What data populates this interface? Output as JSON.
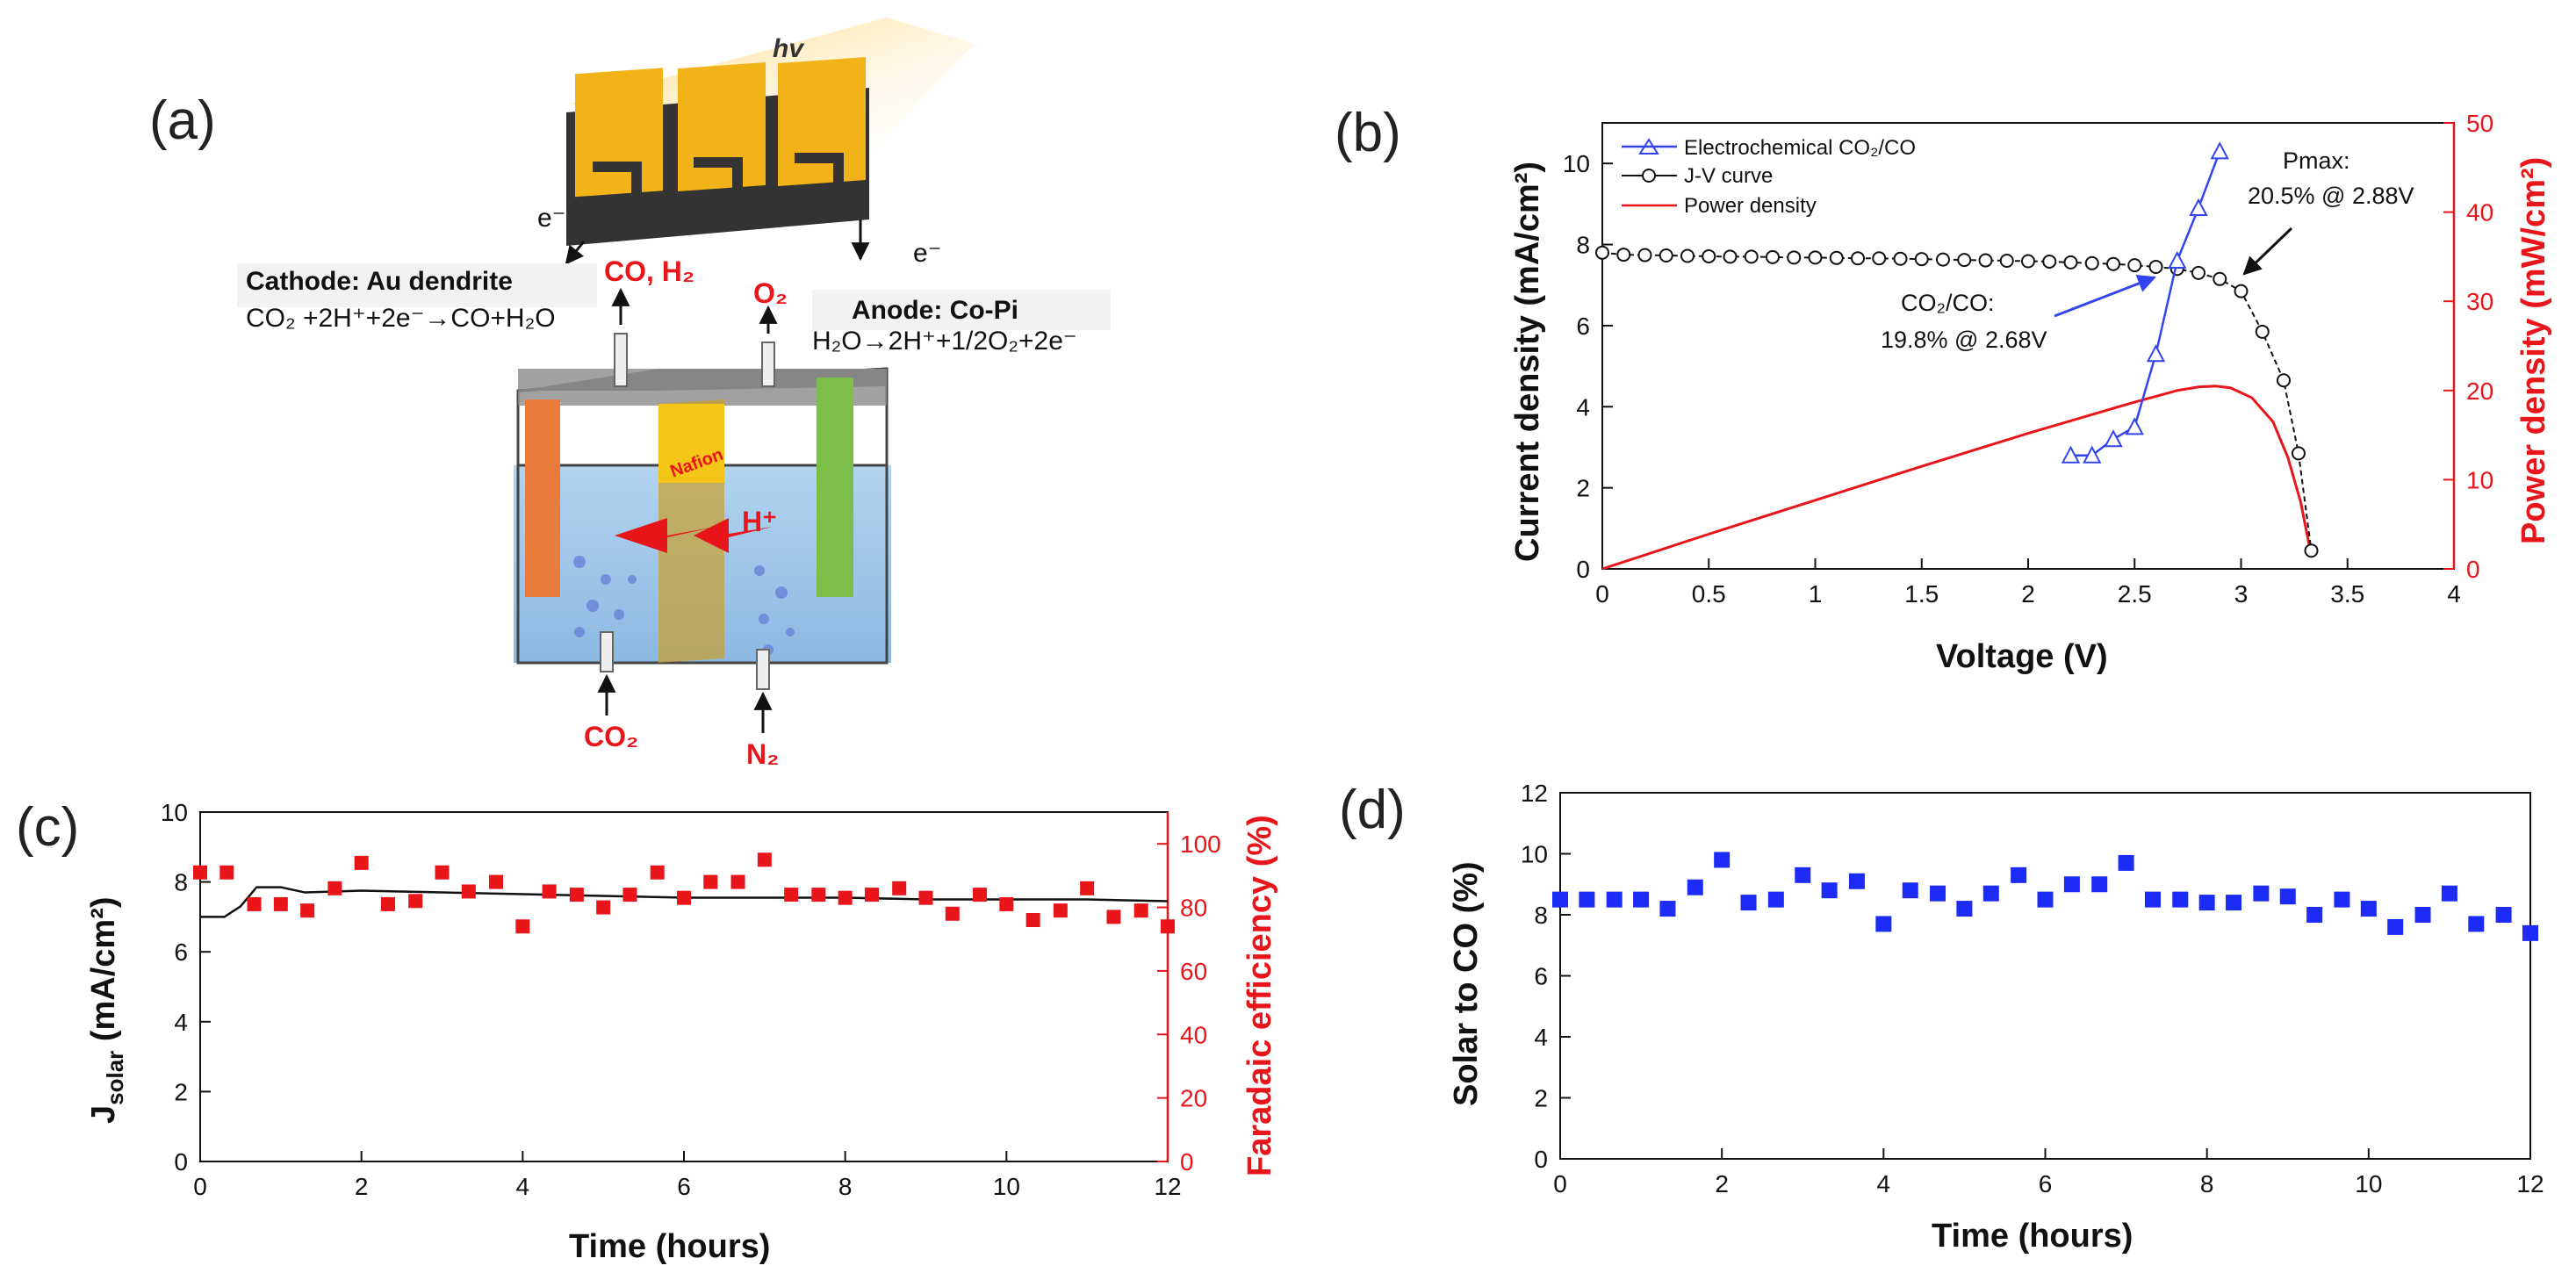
{
  "panels": {
    "a": "(a)",
    "b": "(b)",
    "c": "(c)",
    "d": "(d)"
  },
  "diagram": {
    "hv": "hv",
    "electron_left": "e⁻",
    "electron_right": "e⁻",
    "cathode_title": "Cathode: Au dendrite",
    "cathode_reaction": "CO₂ +2H⁺+2e⁻→CO+H₂O",
    "anode_title": "Anode: Co-Pi",
    "anode_reaction": "H₂O→2H⁺+1/2O₂+2e⁻",
    "gas_out_cathode": "CO, H₂",
    "gas_out_anode": "O₂",
    "membrane": "Nafion",
    "proton": "H⁺",
    "gas_in_cathode": "CO₂",
    "gas_in_anode": "N₂"
  },
  "chart_data": [
    {
      "id": "b",
      "type": "line",
      "xlabel": "Voltage (V)",
      "ylabel": "Current density (mA/cm²)",
      "y2label": "Power density (mW/cm²)",
      "xlim": [
        0,
        4
      ],
      "ylim": [
        0,
        11
      ],
      "y2lim": [
        0,
        50
      ],
      "xticks": [
        "0",
        "0.5",
        "1",
        "1.5",
        "2",
        "2.5",
        "3",
        "3.5",
        "4"
      ],
      "yticks": [
        "0",
        "2",
        "4",
        "6",
        "8",
        "10"
      ],
      "y2ticks": [
        "0",
        "10",
        "20",
        "30",
        "40",
        "50"
      ],
      "legend": [
        "Electrochemical CO₂/CO",
        "J-V curve",
        "Power density"
      ],
      "annotations": {
        "pmax_1": "Pmax:",
        "pmax_2": "20.5% @ 2.88V",
        "co_1": "CO₂/CO:",
        "co_2": "19.8% @ 2.68V"
      },
      "colors": {
        "electrochem": "#3344ee",
        "jv": "#111111",
        "power": "#e8151b"
      },
      "series": [
        {
          "name": "Electrochemical CO₂/CO",
          "x": [
            2.2,
            2.3,
            2.4,
            2.5,
            2.6,
            2.7,
            2.8,
            2.9
          ],
          "y": [
            2.8,
            2.8,
            3.2,
            3.5,
            5.3,
            7.6,
            8.9,
            10.3
          ]
        },
        {
          "name": "J-V curve",
          "x": [
            0,
            0.1,
            0.2,
            0.3,
            0.4,
            0.5,
            0.6,
            0.7,
            0.8,
            0.9,
            1.0,
            1.1,
            1.2,
            1.3,
            1.4,
            1.5,
            1.6,
            1.7,
            1.8,
            1.9,
            2.0,
            2.1,
            2.2,
            2.3,
            2.4,
            2.5,
            2.6,
            2.7,
            2.8,
            2.9,
            3.0,
            3.1,
            3.2,
            3.27,
            3.33
          ],
          "y": [
            7.8,
            7.75,
            7.74,
            7.73,
            7.72,
            7.71,
            7.7,
            7.7,
            7.69,
            7.68,
            7.68,
            7.67,
            7.66,
            7.66,
            7.65,
            7.64,
            7.63,
            7.62,
            7.61,
            7.6,
            7.59,
            7.58,
            7.56,
            7.54,
            7.52,
            7.49,
            7.45,
            7.4,
            7.3,
            7.15,
            6.85,
            5.85,
            4.65,
            2.85,
            0.45
          ]
        },
        {
          "name": "Power density",
          "axis": "y2",
          "x": [
            0,
            0.5,
            1.0,
            1.5,
            2.0,
            2.5,
            2.7,
            2.8,
            2.88,
            2.95,
            3.05,
            3.15,
            3.22,
            3.28,
            3.33
          ],
          "y": [
            0,
            3.9,
            7.7,
            11.5,
            15.2,
            18.7,
            20.0,
            20.4,
            20.5,
            20.3,
            19.2,
            16.5,
            12.5,
            7.5,
            1.5
          ]
        }
      ]
    },
    {
      "id": "c",
      "type": "scatter",
      "xlabel": "Time (hours)",
      "ylabel": "J_solar (mA/cm²)",
      "ylabel_main": "J",
      "ylabel_sub": "solar",
      "ylabel_rest": " (mA/cm²)",
      "y2label": "Faradaic efficiency (%)",
      "xlim": [
        0,
        12
      ],
      "ylim": [
        0,
        10
      ],
      "y2lim": [
        0,
        110
      ],
      "xticks": [
        "0",
        "2",
        "4",
        "6",
        "8",
        "10",
        "12"
      ],
      "yticks": [
        "0",
        "2",
        "4",
        "6",
        "8",
        "10"
      ],
      "y2ticks": [
        "0",
        "20",
        "40",
        "60",
        "80",
        "100"
      ],
      "series": [
        {
          "name": "J_solar",
          "type": "line",
          "x": [
            0,
            0.3,
            0.5,
            0.7,
            1.0,
            1.3,
            2.0,
            3.0,
            4.0,
            5.0,
            6.0,
            7.0,
            8.0,
            9.0,
            10.0,
            11.0,
            12.0
          ],
          "y": [
            7.0,
            7.0,
            7.3,
            7.85,
            7.85,
            7.7,
            7.75,
            7.7,
            7.65,
            7.6,
            7.55,
            7.55,
            7.55,
            7.5,
            7.5,
            7.5,
            7.45
          ]
        },
        {
          "name": "Faradaic efficiency",
          "axis": "y2",
          "x": [
            0,
            0.33,
            0.67,
            1.0,
            1.33,
            1.67,
            2.0,
            2.33,
            2.67,
            3.0,
            3.33,
            3.67,
            4.0,
            4.33,
            4.67,
            5.0,
            5.33,
            5.67,
            6.0,
            6.33,
            6.67,
            7.0,
            7.33,
            7.67,
            8.0,
            8.33,
            8.67,
            9.0,
            9.33,
            9.67,
            10.0,
            10.33,
            10.67,
            11.0,
            11.33,
            11.67,
            12.0
          ],
          "y": [
            91,
            91,
            81,
            81,
            79,
            86,
            94,
            81,
            82,
            91,
            85,
            88,
            74,
            85,
            84,
            80,
            84,
            91,
            83,
            88,
            88,
            95,
            84,
            84,
            83,
            84,
            86,
            83,
            78,
            84,
            81,
            76,
            79,
            86,
            77,
            79,
            74
          ]
        }
      ]
    },
    {
      "id": "d",
      "type": "scatter",
      "xlabel": "Time (hours)",
      "ylabel": "Solar to CO (%)",
      "xlim": [
        0,
        12
      ],
      "ylim": [
        0,
        12
      ],
      "xticks": [
        "0",
        "2",
        "4",
        "6",
        "8",
        "10",
        "12"
      ],
      "yticks": [
        "0",
        "2",
        "4",
        "6",
        "8",
        "10",
        "12"
      ],
      "series": [
        {
          "name": "Solar to CO",
          "x": [
            0,
            0.33,
            0.67,
            1.0,
            1.33,
            1.67,
            2.0,
            2.33,
            2.67,
            3.0,
            3.33,
            3.67,
            4.0,
            4.33,
            4.67,
            5.0,
            5.33,
            5.67,
            6.0,
            6.33,
            6.67,
            7.0,
            7.33,
            7.67,
            8.0,
            8.33,
            8.67,
            9.0,
            9.33,
            9.67,
            10.0,
            10.33,
            10.67,
            11.0,
            11.33,
            11.67,
            12.0
          ],
          "y": [
            8.5,
            8.5,
            8.5,
            8.5,
            8.2,
            8.9,
            9.8,
            8.4,
            8.5,
            9.3,
            8.8,
            9.1,
            7.7,
            8.8,
            8.7,
            8.2,
            8.7,
            9.3,
            8.5,
            9.0,
            9.0,
            9.7,
            8.5,
            8.5,
            8.4,
            8.4,
            8.7,
            8.6,
            8.0,
            8.5,
            8.2,
            7.6,
            8.0,
            8.7,
            7.7,
            8.0,
            7.4
          ]
        }
      ]
    }
  ]
}
